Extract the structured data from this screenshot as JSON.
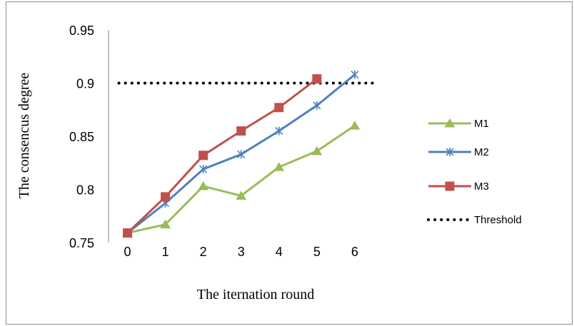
{
  "chart_data": {
    "type": "line",
    "title": "",
    "xlabel": "The iternation round",
    "ylabel": "The consencus degree",
    "x": [
      0,
      1,
      2,
      3,
      4,
      5,
      6
    ],
    "xlim": [
      -0.5,
      7.0
    ],
    "ylim": [
      0.75,
      0.95
    ],
    "yticks": [
      0.75,
      0.8,
      0.85,
      0.9,
      0.95
    ],
    "ytick_labels": [
      "0.75",
      "0.8",
      "0.85",
      "0.9",
      "0.95"
    ],
    "xtick_labels": [
      "0",
      "1",
      "2",
      "3",
      "4",
      "5",
      "6"
    ],
    "grid": false,
    "legend_position": "right",
    "series": [
      {
        "name": "M1",
        "color": "#9BBB59",
        "marker": "triangle",
        "values": [
          0.759,
          0.767,
          0.803,
          0.794,
          0.821,
          0.836,
          0.86
        ]
      },
      {
        "name": "M2",
        "color": "#4F81BD",
        "marker": "star",
        "values": [
          0.759,
          0.787,
          0.819,
          0.833,
          0.855,
          0.879,
          0.908
        ]
      },
      {
        "name": "M3",
        "color": "#C0504D",
        "marker": "square",
        "values": [
          0.759,
          0.793,
          0.832,
          0.855,
          0.877,
          0.904,
          null
        ]
      }
    ],
    "threshold": {
      "name": "Threshold",
      "value": 0.9,
      "color": "#000000",
      "style": "dotted",
      "x_range": [
        0,
        6.5
      ]
    }
  }
}
